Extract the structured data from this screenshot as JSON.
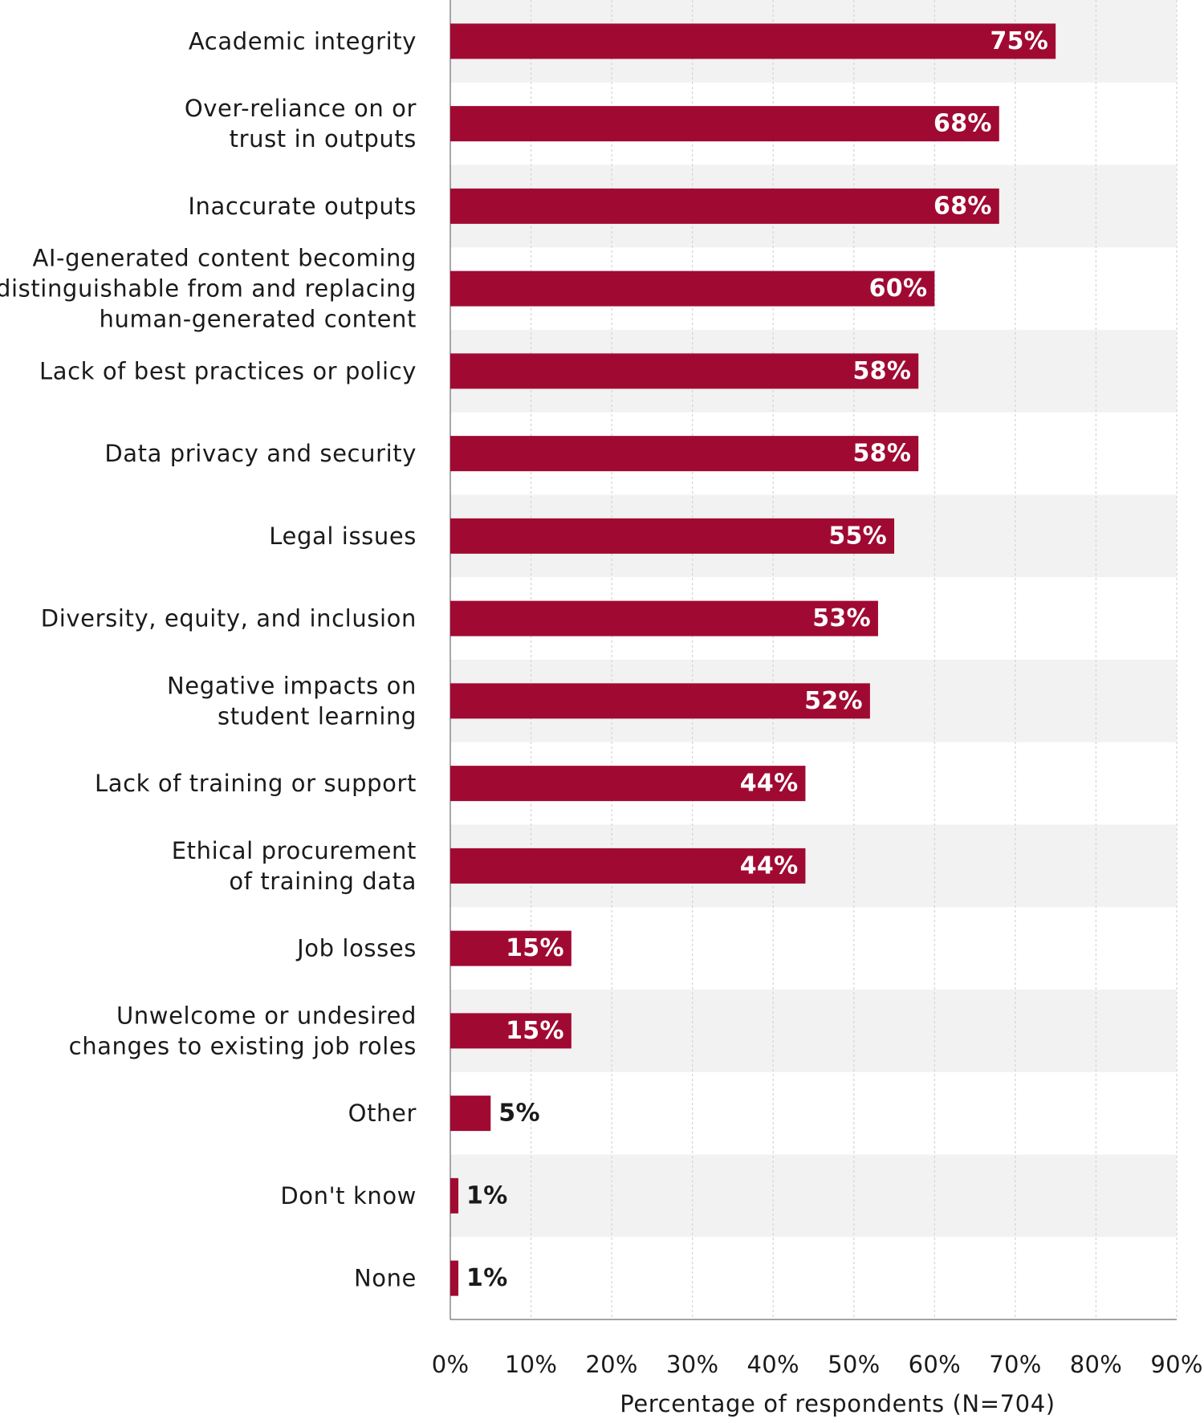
{
  "chart_data": {
    "type": "bar",
    "orientation": "horizontal",
    "categories": [
      "Academic integrity",
      "Over-reliance on or\ntrust in outputs",
      "Inaccurate outputs",
      "AI-generated content becoming\nindistinguishable from and replacing\nhuman-generated content",
      "Lack of best practices or policy",
      "Data privacy and security",
      "Legal issues",
      "Diversity, equity, and inclusion",
      "Negative impacts on\nstudent learning",
      "Lack of training or support",
      "Ethical procurement\nof training data",
      "Job losses",
      "Unwelcome or undesired\nchanges to existing job roles",
      "Other",
      "Don't know",
      "None"
    ],
    "values": [
      75,
      68,
      68,
      60,
      58,
      58,
      55,
      53,
      52,
      44,
      44,
      15,
      15,
      5,
      1,
      1
    ],
    "value_labels": [
      "75%",
      "68%",
      "68%",
      "60%",
      "58%",
      "58%",
      "55%",
      "53%",
      "52%",
      "44%",
      "44%",
      "15%",
      "15%",
      "5%",
      "1%",
      "1%"
    ],
    "xlabel": "Percentage of respondents (N=704)",
    "xlim": [
      0,
      90
    ],
    "xticks": [
      0,
      10,
      20,
      30,
      40,
      50,
      60,
      70,
      80,
      90
    ],
    "xtick_labels": [
      "0%",
      "10%",
      "20%",
      "30%",
      "40%",
      "50%",
      "60%",
      "70%",
      "80%",
      "90%"
    ],
    "grid": "vertical dashed",
    "row_banding": true,
    "legend": "none",
    "colors": {
      "bar": "#a00a32",
      "band": "#f2f2f2",
      "grid": "#d4d4d4",
      "axis": "#6e6e6e",
      "label_inside": "#ffffff",
      "label_outside": "#1a1a1a"
    }
  }
}
